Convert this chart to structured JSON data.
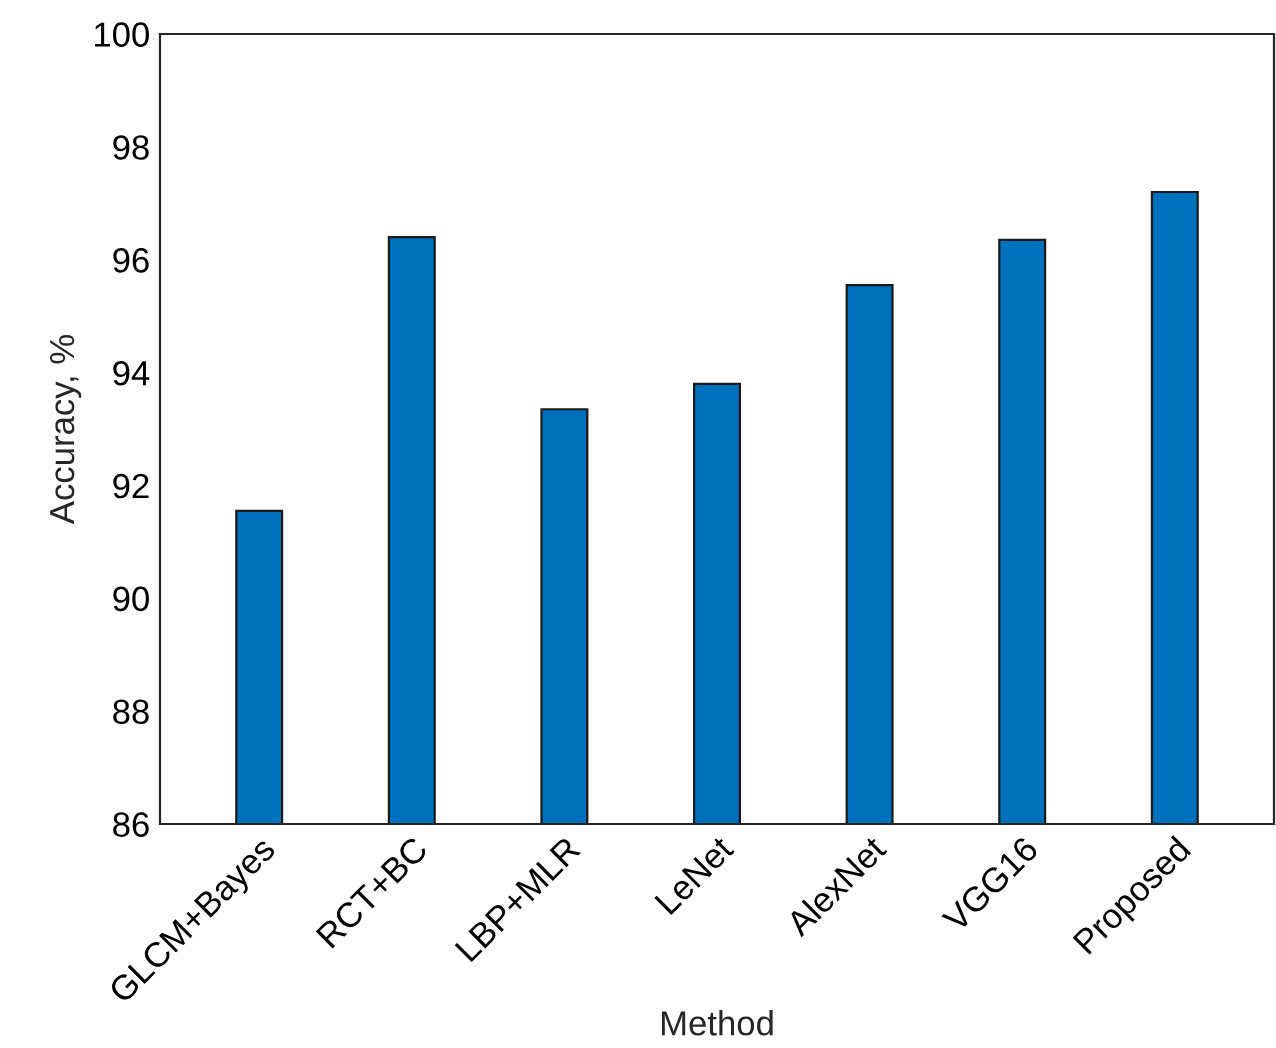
{
  "chart_data": {
    "type": "bar",
    "xlabel": "Method",
    "ylabel": "Accuracy, %",
    "categories": [
      "GLCM+Bayes",
      "RCT+BC",
      "LBP+MLR",
      "LeNet",
      "AlexNet",
      "VGG16",
      "Proposed"
    ],
    "values": [
      91.55,
      96.4,
      93.35,
      93.8,
      95.55,
      96.35,
      97.2
    ],
    "color": "#0072bd",
    "ylim": [
      86,
      100
    ],
    "yticks": [
      86,
      88,
      90,
      92,
      94,
      96,
      98,
      100
    ],
    "grid": false,
    "legend": false
  }
}
